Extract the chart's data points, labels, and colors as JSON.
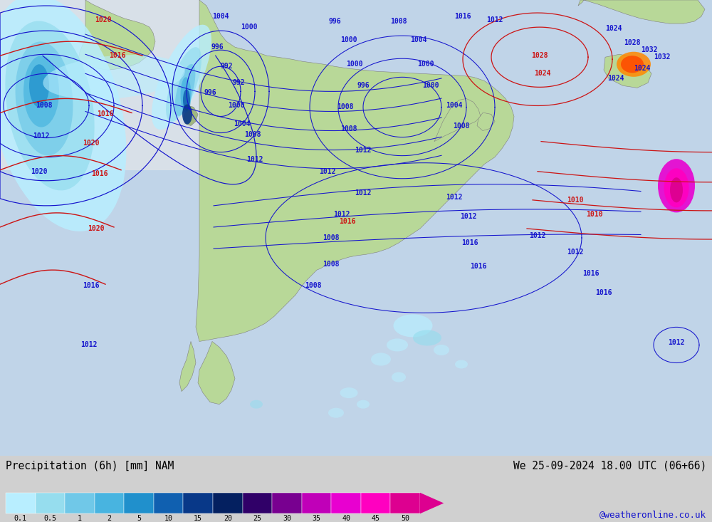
{
  "title_left": "Precipitation (6h) [mm] NAM",
  "title_right": "We 25-09-2024 18.00 UTC (06+66)",
  "watermark": "@weatheronline.co.uk",
  "colorbar_labels": [
    "0.1",
    "0.5",
    "1",
    "2",
    "5",
    "10",
    "15",
    "20",
    "25",
    "30",
    "35",
    "40",
    "45",
    "50"
  ],
  "colorbar_colors": [
    "#b8eeff",
    "#96ddee",
    "#70c8e8",
    "#48b4e0",
    "#2090cc",
    "#1060b0",
    "#083888",
    "#042060",
    "#300068",
    "#780090",
    "#c000b8",
    "#e800d0",
    "#ff00c0",
    "#dd0090"
  ],
  "bg_gray": "#d0d0d0",
  "ocean_color": "#c0d4e8",
  "land_color_green": "#b8d898",
  "land_color_dark": "#a8c888",
  "precip_colors": {
    "lightest_blue": "#b8eeff",
    "light_blue": "#96ddee",
    "mid_blue": "#70c8e8",
    "blue": "#48b4e0",
    "dark_blue": "#2090cc",
    "darker_blue": "#1060b0",
    "deep_blue": "#083888",
    "navy": "#042060",
    "purple_dark": "#300068",
    "purple": "#780090",
    "magenta_dark": "#c000b8",
    "magenta": "#e800d0",
    "hot_pink": "#ff00c0",
    "deep_pink": "#dd0090"
  },
  "isobar_blue": "#1414cd",
  "isobar_red": "#cc1414",
  "figure_width": 10.0,
  "figure_height": 7.33,
  "dpi": 100
}
